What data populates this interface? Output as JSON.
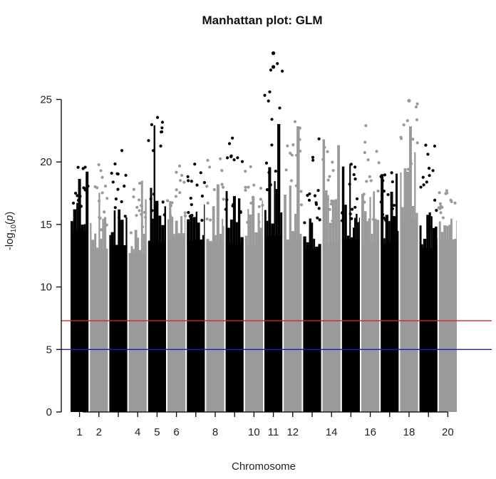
{
  "chart_data": {
    "type": "scatter",
    "subtype": "manhattan",
    "title": "Manhattan plot: GLM",
    "xlabel": "Chromosome",
    "ylabel_prefix": "-log",
    "ylabel_sub": "10",
    "ylabel_arg": "p",
    "ylim": [
      0,
      25
    ],
    "y_ticks": [
      0,
      5,
      10,
      15,
      20,
      25
    ],
    "x_tick_labels": [
      "1",
      "2",
      "4",
      "5",
      "6",
      "8",
      "10",
      "11",
      "12",
      "14",
      "16",
      "18",
      "20"
    ],
    "x_tick_positions": [
      1,
      2,
      4,
      5,
      6,
      8,
      10,
      11,
      12,
      14,
      16,
      18,
      20
    ],
    "colors": [
      "#000000",
      "#9a9a9a"
    ],
    "thresholds": [
      {
        "name": "genome-wide",
        "value": 7.3,
        "color": "#e02020"
      },
      {
        "name": "suggestive",
        "value": 5.0,
        "color": "#1a1acc"
      }
    ],
    "chromosomes": [
      {
        "chr": 1,
        "color": "black",
        "peak": 20.1,
        "plateau": 16.0
      },
      {
        "chr": 2,
        "color": "grey",
        "peak": 19.8,
        "plateau": 14.5
      },
      {
        "chr": 3,
        "color": "black",
        "peak": 21.1,
        "plateau": 14.8
      },
      {
        "chr": 4,
        "color": "grey",
        "peak": 18.6,
        "plateau": 14.2
      },
      {
        "chr": 5,
        "color": "black",
        "peak": 24.0,
        "plateau": 15.0
      },
      {
        "chr": 6,
        "color": "grey",
        "peak": 19.8,
        "plateau": 15.5
      },
      {
        "chr": 7,
        "color": "black",
        "peak": 20.2,
        "plateau": 15.2
      },
      {
        "chr": 8,
        "color": "grey",
        "peak": 20.7,
        "plateau": 15.0
      },
      {
        "chr": 9,
        "color": "black",
        "peak": 22.2,
        "plateau": 15.0
      },
      {
        "chr": 10,
        "color": "grey",
        "peak": 20.1,
        "plateau": 14.8
      },
      {
        "chr": 11,
        "color": "black",
        "peak": 28.7,
        "plateau": 15.6
      },
      {
        "chr": 12,
        "color": "grey",
        "peak": 23.6,
        "plateau": 15.2
      },
      {
        "chr": 13,
        "color": "black",
        "peak": 22.1,
        "plateau": 14.5
      },
      {
        "chr": 14,
        "color": "grey",
        "peak": 22.3,
        "plateau": 15.0
      },
      {
        "chr": 15,
        "color": "black",
        "peak": 20.4,
        "plateau": 15.3
      },
      {
        "chr": 16,
        "color": "grey",
        "peak": 23.8,
        "plateau": 15.0
      },
      {
        "chr": 17,
        "color": "black",
        "peak": 19.5,
        "plateau": 15.0
      },
      {
        "chr": 18,
        "color": "grey",
        "peak": 24.9,
        "plateau": 16.8
      },
      {
        "chr": 19,
        "color": "black",
        "peak": 21.9,
        "plateau": 14.6
      },
      {
        "chr": 20,
        "color": "grey",
        "peak": 17.9,
        "plateau": 15.3
      }
    ],
    "outliers": [
      {
        "chr": 11,
        "value": 28.7
      },
      {
        "chr": 11,
        "value": 27.6
      },
      {
        "chr": 18,
        "value": 24.9
      }
    ]
  }
}
